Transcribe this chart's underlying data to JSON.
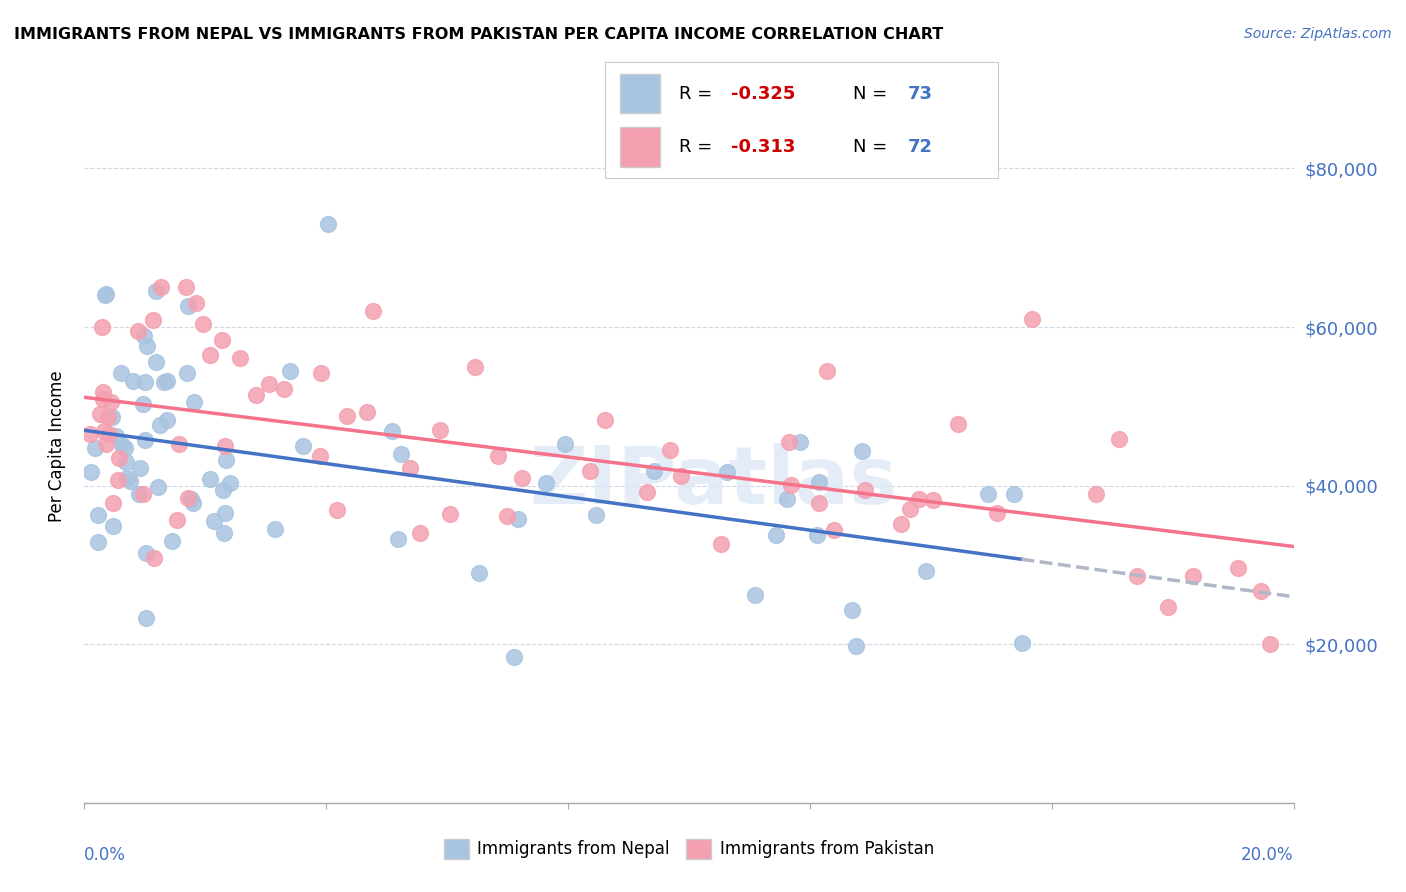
{
  "title": "IMMIGRANTS FROM NEPAL VS IMMIGRANTS FROM PAKISTAN PER CAPITA INCOME CORRELATION CHART",
  "source": "Source: ZipAtlas.com",
  "ylabel": "Per Capita Income",
  "xlim": [
    0.0,
    0.2
  ],
  "ylim": [
    0,
    90000
  ],
  "yticks": [
    0,
    20000,
    40000,
    60000,
    80000
  ],
  "ytick_labels": [
    "",
    "$20,000",
    "$40,000",
    "$60,000",
    "$80,000"
  ],
  "nepal_R": -0.325,
  "nepal_N": 73,
  "pakistan_R": -0.313,
  "pakistan_N": 72,
  "nepal_color": "#a8c4e0",
  "pakistan_color": "#f4a0b0",
  "nepal_line_color": "#4472c4",
  "pakistan_line_color": "#f4728a",
  "dashed_line_color": "#b0b8c8",
  "watermark": "ZIPatlas"
}
